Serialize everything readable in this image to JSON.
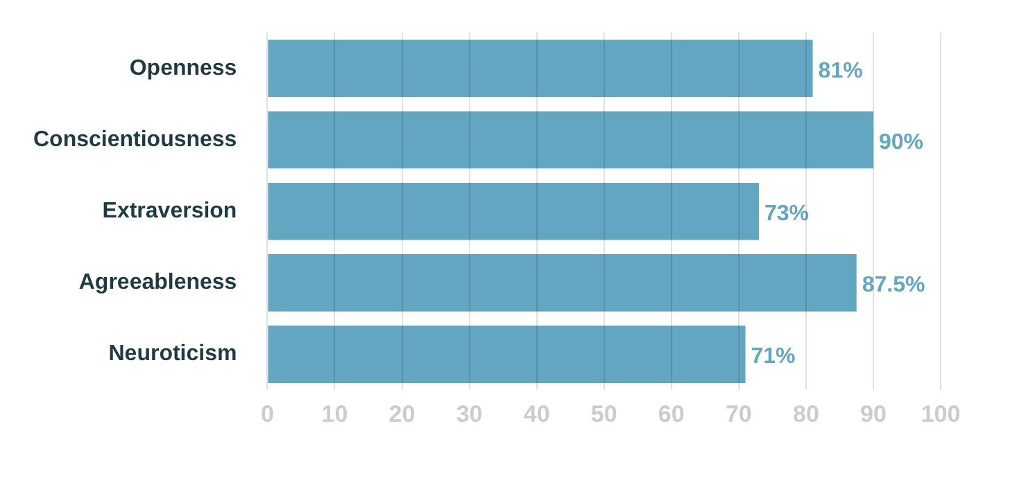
{
  "chart_data": {
    "type": "bar",
    "orientation": "horizontal",
    "categories": [
      "Openness",
      "Conscientiousness",
      "Extraversion",
      "Agreeableness",
      "Neuroticism"
    ],
    "values": [
      81,
      90,
      73,
      87.5,
      71
    ],
    "value_labels": [
      "81%",
      "90%",
      "73%",
      "87.5%",
      "71%"
    ],
    "color": "#62a6c1",
    "xlim": [
      0,
      100
    ],
    "xticks": [
      0,
      10,
      20,
      30,
      40,
      50,
      60,
      70,
      80,
      90,
      100
    ],
    "grid": "x"
  }
}
